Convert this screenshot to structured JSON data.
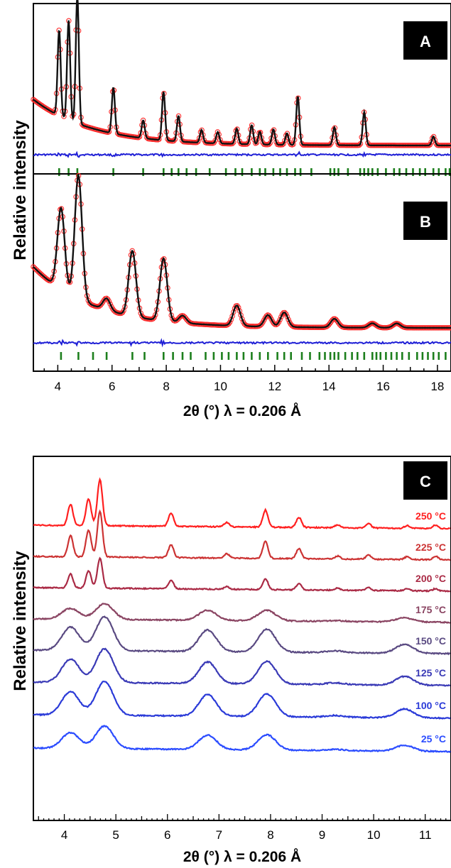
{
  "chart_data": [
    {
      "panel": "A",
      "type": "line",
      "xlabel": "2θ (°)   λ = 0.206 Å",
      "ylabel": "Relative intensity",
      "xlim": [
        3.1,
        18.5
      ],
      "xticks": [
        4,
        6,
        8,
        10,
        12,
        14,
        16,
        18
      ],
      "background": 0.36,
      "series": [
        {
          "role": "observed",
          "color": "#ff2b2b",
          "points": [
            [
              4.05,
              0.67
            ],
            [
              4.4,
              0.78
            ],
            [
              4.72,
              1.0
            ],
            [
              6.05,
              0.36
            ],
            [
              7.15,
              0.14
            ],
            [
              7.9,
              0.38
            ],
            [
              8.45,
              0.2
            ],
            [
              9.3,
              0.1
            ],
            [
              9.9,
              0.09
            ],
            [
              10.6,
              0.12
            ],
            [
              11.15,
              0.15
            ],
            [
              11.45,
              0.1
            ],
            [
              11.95,
              0.12
            ],
            [
              12.45,
              0.09
            ],
            [
              12.85,
              0.38
            ],
            [
              14.2,
              0.14
            ],
            [
              15.3,
              0.26
            ],
            [
              17.85,
              0.07
            ]
          ]
        },
        {
          "role": "calculated",
          "color": "#111111"
        },
        {
          "role": "difference",
          "color": "#1f1fd6"
        },
        {
          "role": "reflections",
          "color": "#1d7f1d",
          "positions": [
            4.05,
            4.4,
            4.72,
            6.05,
            7.15,
            7.9,
            8.2,
            8.45,
            8.75,
            9.1,
            9.6,
            10.2,
            10.55,
            10.8,
            11.15,
            11.45,
            11.65,
            11.95,
            12.2,
            12.45,
            12.75,
            12.95,
            13.35,
            14.05,
            14.2,
            14.35,
            14.7,
            15.15,
            15.3,
            15.45,
            15.6,
            15.8,
            16.1,
            16.4,
            16.6,
            16.85,
            17.1,
            17.35,
            17.55,
            17.85,
            18.05,
            18.3,
            18.45
          ]
        }
      ]
    },
    {
      "panel": "B",
      "type": "line",
      "xlim": [
        3.1,
        18.5
      ],
      "xticks": [
        4,
        6,
        8,
        10,
        12,
        14,
        16,
        18
      ],
      "background": 0.42,
      "series": [
        {
          "role": "observed",
          "color": "#ff2b2b",
          "points": [
            [
              4.12,
              0.56
            ],
            [
              4.76,
              0.85
            ],
            [
              5.8,
              0.08
            ],
            [
              6.75,
              0.45
            ],
            [
              7.9,
              0.43
            ],
            [
              8.6,
              0.05
            ],
            [
              10.6,
              0.14
            ],
            [
              11.75,
              0.08
            ],
            [
              12.35,
              0.1
            ],
            [
              14.2,
              0.06
            ],
            [
              15.6,
              0.03
            ],
            [
              16.5,
              0.03
            ]
          ]
        },
        {
          "role": "calculated",
          "color": "#111111"
        },
        {
          "role": "difference",
          "color": "#1f1fd6"
        },
        {
          "role": "reflections",
          "color": "#1d7f1d",
          "positions": [
            4.12,
            4.76,
            5.3,
            5.8,
            6.75,
            7.2,
            7.9,
            8.25,
            8.6,
            8.9,
            9.45,
            9.75,
            10.05,
            10.3,
            10.6,
            10.85,
            11.15,
            11.45,
            11.75,
            12.1,
            12.35,
            12.6,
            13.0,
            13.3,
            13.65,
            13.85,
            14.05,
            14.2,
            14.35,
            14.6,
            14.85,
            15.05,
            15.3,
            15.6,
            15.75,
            15.9,
            16.1,
            16.3,
            16.5,
            16.7,
            16.95,
            17.25,
            17.45,
            17.65,
            17.85,
            18.05,
            18.3
          ]
        }
      ]
    },
    {
      "panel": "C",
      "type": "line",
      "xlabel": "2θ (°)   λ = 0.206 Å",
      "ylabel": "Relative intensity",
      "xlim": [
        3.4,
        11.5
      ],
      "xticks": [
        4,
        5,
        6,
        7,
        8,
        9,
        10,
        11
      ],
      "series": [
        {
          "name": "250 °C",
          "color": "#ff1f1f",
          "profile": "crystalline",
          "peak_scale": 1.0
        },
        {
          "name": "225 °C",
          "color": "#cc3333",
          "profile": "crystalline",
          "peak_scale": 1.0
        },
        {
          "name": "200 °C",
          "color": "#aa2a45",
          "profile": "crystalline",
          "peak_scale": 0.65
        },
        {
          "name": "175 °C",
          "color": "#8a4462",
          "profile": "amorphous",
          "peak_scale": 0.38
        },
        {
          "name": "150 °C",
          "color": "#5a4a82",
          "profile": "amorphous",
          "peak_scale": 0.82
        },
        {
          "name": "125 °C",
          "color": "#3a3ab6",
          "profile": "amorphous",
          "peak_scale": 0.82
        },
        {
          "name": "100 °C",
          "color": "#2a3ad8",
          "profile": "amorphous",
          "peak_scale": 0.82
        },
        {
          "name": "25 °C",
          "color": "#2b4cff",
          "profile": "amorphous",
          "peak_scale": 0.55
        }
      ]
    }
  ],
  "panel_a_label": "A",
  "panel_b_label": "B",
  "panel_c_label": "C",
  "ylabel_ab": "Relative intensity",
  "ylabel_c": "Relative intensity",
  "xlabel_ab": "2θ (°)   λ = 0.206 Å",
  "xlabel_c": "2θ (°)   λ = 0.206 Å"
}
